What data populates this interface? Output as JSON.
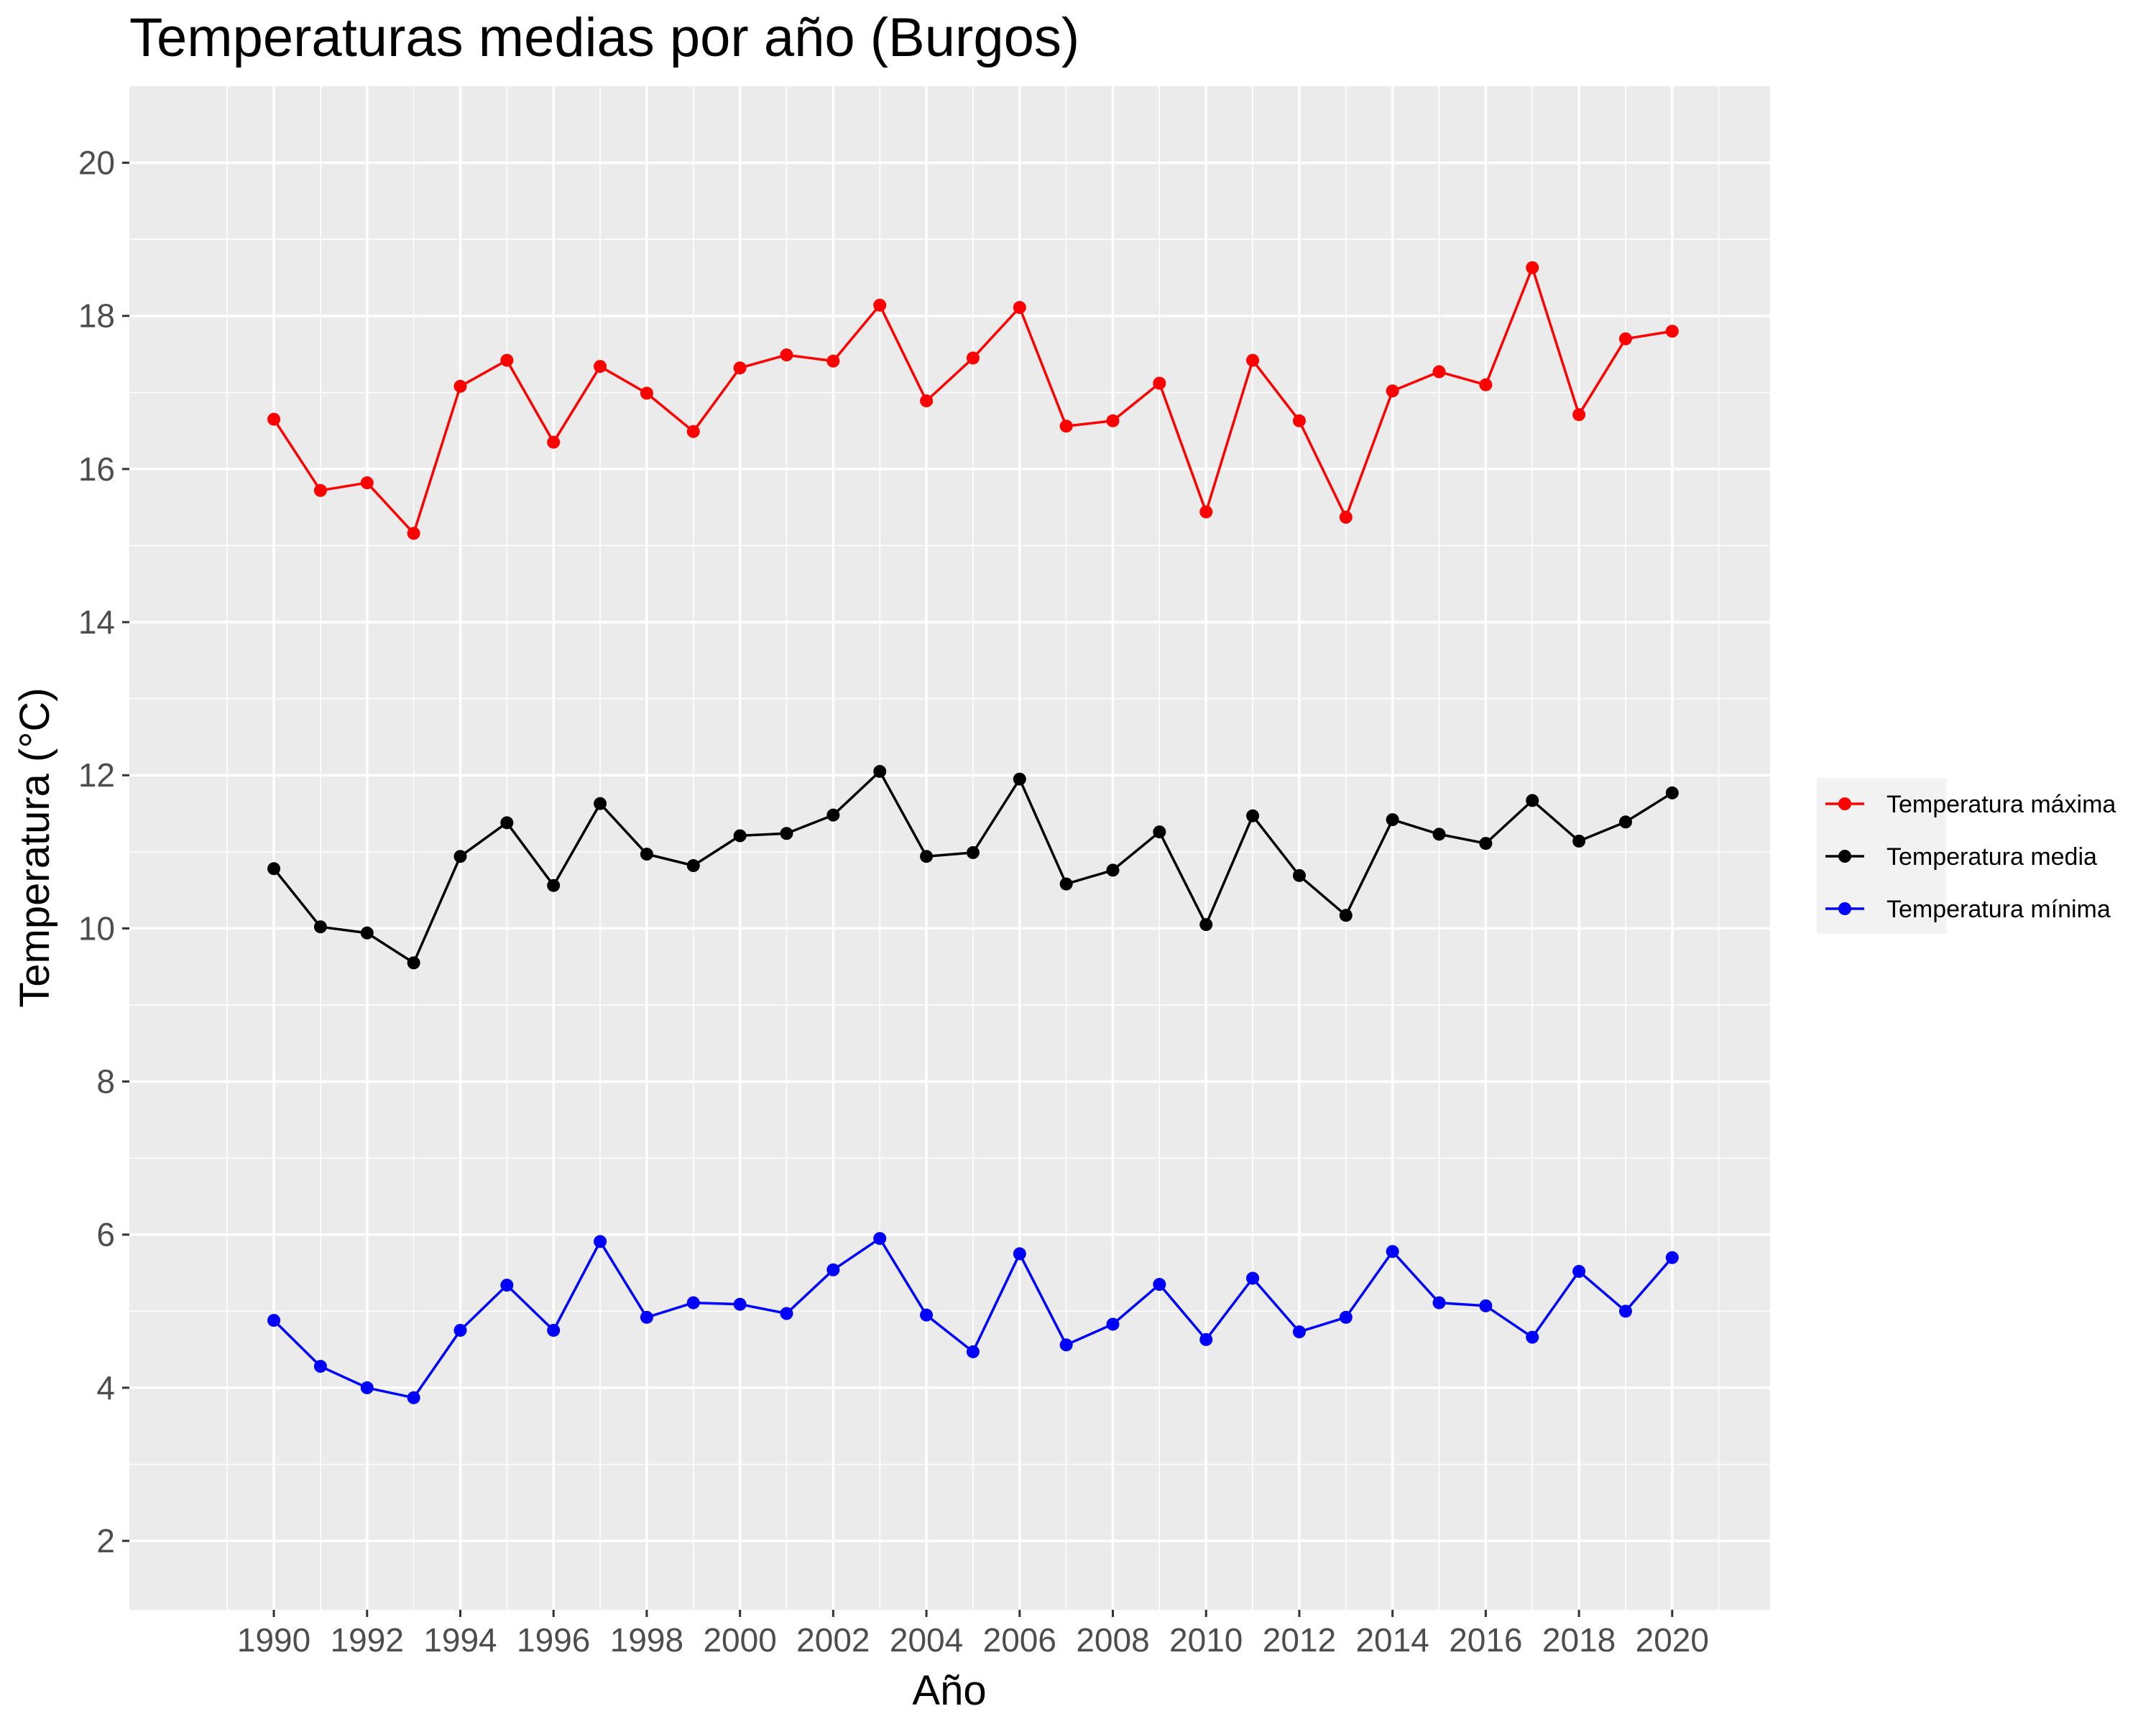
{
  "chart_data": {
    "type": "line",
    "title": "Temperaturas medias por año (Burgos)",
    "xlabel": "Año",
    "ylabel": "Temperatura (°C)",
    "xlim": [
      1986.9,
      2022.1
    ],
    "ylim": [
      1.1,
      21.0
    ],
    "x_ticks": [
      1990,
      1992,
      1994,
      1996,
      1998,
      2000,
      2002,
      2004,
      2006,
      2008,
      2010,
      2012,
      2014,
      2016,
      2018,
      2020
    ],
    "x_tick_labels": [
      "1990",
      "1992",
      "1994",
      "1996",
      "1998",
      "2000",
      "2002",
      "2004",
      "2006",
      "2008",
      "2010",
      "2012",
      "2014",
      "2016",
      "2018",
      "2020"
    ],
    "y_ticks": [
      2,
      4,
      6,
      8,
      10,
      12,
      14,
      16,
      18,
      20
    ],
    "y_tick_labels": [
      "2",
      "4",
      "6",
      "8",
      "10",
      "12",
      "14",
      "16",
      "18",
      "20"
    ],
    "grid": true,
    "legend_position": "right",
    "x": [
      1990,
      1991,
      1992,
      1993,
      1994,
      1995,
      1996,
      1997,
      1998,
      1999,
      2000,
      2001,
      2002,
      2003,
      2004,
      2005,
      2006,
      2007,
      2008,
      2009,
      2010,
      2011,
      2012,
      2013,
      2014,
      2015,
      2016,
      2017,
      2018,
      2019,
      2020
    ],
    "series": [
      {
        "name": "Temperatura máxima",
        "color": "#ff0000",
        "values": [
          16.65,
          15.72,
          15.82,
          15.16,
          17.08,
          17.42,
          16.35,
          17.34,
          16.99,
          16.49,
          17.32,
          17.49,
          17.41,
          18.14,
          16.89,
          17.45,
          18.11,
          16.56,
          16.63,
          17.12,
          15.44,
          17.42,
          16.63,
          15.37,
          17.02,
          17.27,
          17.1,
          18.63,
          16.71,
          17.7,
          17.8
        ]
      },
      {
        "name": "Temperatura media",
        "color": "#000000",
        "values": [
          10.78,
          10.02,
          9.94,
          9.55,
          10.94,
          11.38,
          10.56,
          11.63,
          10.97,
          10.82,
          11.21,
          11.24,
          11.48,
          12.05,
          10.94,
          10.99,
          11.95,
          10.58,
          10.76,
          11.26,
          10.05,
          11.47,
          10.69,
          10.17,
          11.42,
          11.23,
          11.11,
          11.67,
          11.14,
          11.39,
          11.77
        ]
      },
      {
        "name": "Temperatura mínima",
        "color": "#0000ff",
        "values": [
          4.88,
          4.28,
          4.0,
          3.87,
          4.75,
          5.34,
          4.75,
          5.91,
          4.92,
          5.11,
          5.09,
          4.97,
          5.54,
          5.95,
          4.95,
          4.47,
          5.75,
          4.56,
          4.83,
          5.35,
          4.63,
          5.43,
          4.73,
          4.92,
          5.78,
          5.11,
          5.07,
          4.66,
          5.52,
          5.0,
          5.7
        ]
      }
    ]
  }
}
